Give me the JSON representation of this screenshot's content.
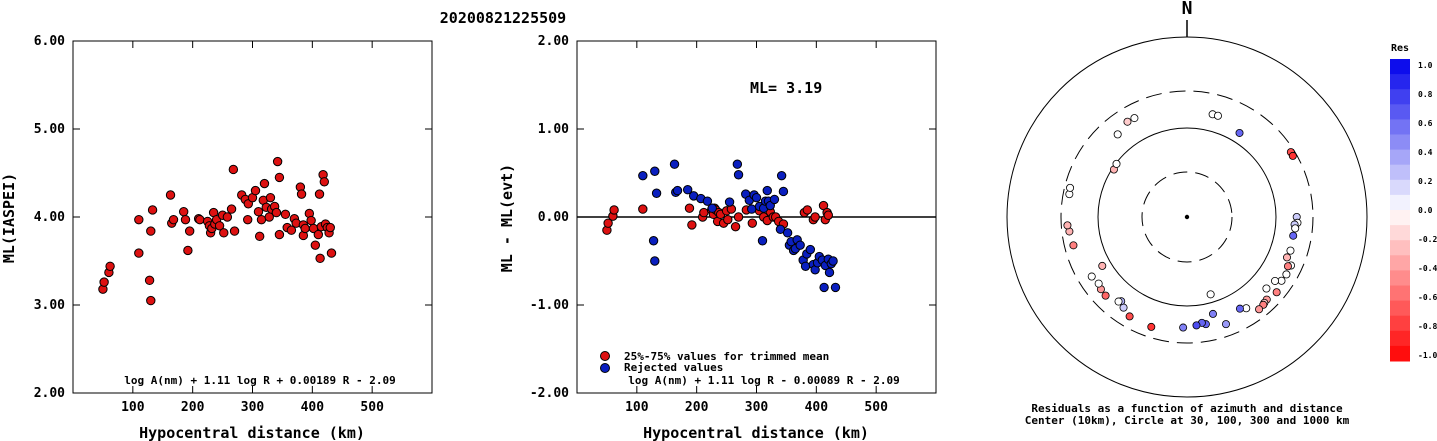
{
  "title": "20200821225509",
  "colors": {
    "accepted": "#dd1111",
    "rejected": "#0a1fbf",
    "outline": "#000000"
  },
  "chart_data": [
    {
      "type": "scatter",
      "title": "",
      "xlabel": "Hypocentral distance (km)",
      "ylabel": "ML(IASPEI)",
      "xlim": [
        0,
        600
      ],
      "ylim": [
        2,
        6
      ],
      "xticks": [
        "100",
        "200",
        "300",
        "400",
        "500"
      ],
      "yticks": [
        "2.00",
        "3.00",
        "4.00",
        "5.00",
        "6.00"
      ],
      "formula": "log A(nm) + 1.11 log R + 0.00189 R - 2.09",
      "series": [
        {
          "color": "#dd1111",
          "points": [
            [
              50,
              3.18
            ],
            [
              52,
              3.26
            ],
            [
              60,
              3.37
            ],
            [
              62,
              3.44
            ],
            [
              110,
              3.97
            ],
            [
              110,
              3.59
            ],
            [
              128,
              3.28
            ],
            [
              130,
              3.05
            ],
            [
              130,
              3.84
            ],
            [
              133,
              4.08
            ],
            [
              163,
              4.25
            ],
            [
              165,
              3.93
            ],
            [
              168,
              3.97
            ],
            [
              185,
              4.06
            ],
            [
              188,
              3.97
            ],
            [
              192,
              3.62
            ],
            [
              195,
              3.84
            ],
            [
              210,
              3.98
            ],
            [
              212,
              3.97
            ],
            [
              225,
              3.95
            ],
            [
              228,
              3.9
            ],
            [
              230,
              3.82
            ],
            [
              232,
              3.87
            ],
            [
              235,
              4.05
            ],
            [
              237,
              3.92
            ],
            [
              240,
              3.97
            ],
            [
              245,
              3.9
            ],
            [
              250,
              4.02
            ],
            [
              252,
              3.82
            ],
            [
              258,
              4.0
            ],
            [
              265,
              4.09
            ],
            [
              268,
              4.54
            ],
            [
              270,
              3.84
            ],
            [
              282,
              4.25
            ],
            [
              288,
              4.2
            ],
            [
              292,
              3.97
            ],
            [
              293,
              4.15
            ],
            [
              300,
              4.22
            ],
            [
              305,
              4.3
            ],
            [
              310,
              4.06
            ],
            [
              312,
              3.78
            ],
            [
              315,
              3.97
            ],
            [
              318,
              4.19
            ],
            [
              320,
              4.38
            ],
            [
              323,
              4.11
            ],
            [
              328,
              4.0
            ],
            [
              330,
              4.22
            ],
            [
              332,
              4.09
            ],
            [
              337,
              4.12
            ],
            [
              340,
              4.05
            ],
            [
              342,
              4.63
            ],
            [
              345,
              3.8
            ],
            [
              345,
              4.45
            ],
            [
              355,
              4.03
            ],
            [
              358,
              3.88
            ],
            [
              365,
              3.85
            ],
            [
              370,
              3.98
            ],
            [
              373,
              3.93
            ],
            [
              380,
              4.34
            ],
            [
              382,
              4.26
            ],
            [
              385,
              3.79
            ],
            [
              385,
              3.91
            ],
            [
              388,
              3.87
            ],
            [
              395,
              4.04
            ],
            [
              398,
              3.96
            ],
            [
              402,
              3.87
            ],
            [
              405,
              3.68
            ],
            [
              410,
              3.8
            ],
            [
              412,
              4.26
            ],
            [
              413,
              3.53
            ],
            [
              415,
              3.89
            ],
            [
              418,
              4.48
            ],
            [
              420,
              4.4
            ],
            [
              422,
              3.92
            ],
            [
              425,
              3.88
            ],
            [
              428,
              3.82
            ],
            [
              430,
              3.88
            ],
            [
              432,
              3.59
            ]
          ]
        }
      ]
    },
    {
      "type": "scatter",
      "title": "",
      "xlabel": "Hypocentral distance (km)",
      "ylabel": "ML - ML(evt)",
      "xlim": [
        0,
        600
      ],
      "ylim": [
        -2,
        2
      ],
      "xticks": [
        "100",
        "200",
        "300",
        "400",
        "500"
      ],
      "yticks": [
        "-2.00",
        "-1.00",
        "0.00",
        "1.00",
        "2.00"
      ],
      "annotation": "ML= 3.19",
      "legend": [
        "25%-75% values for trimmed mean",
        "Rejected values"
      ],
      "formula": "log A(nm) + 1.11 log R - 0.00089 R - 2.09",
      "series": [
        {
          "name": "25%-75% values for trimmed mean",
          "color": "#dd1111",
          "points": [
            [
              50,
              -0.15
            ],
            [
              52,
              -0.07
            ],
            [
              60,
              0.01
            ],
            [
              62,
              0.08
            ],
            [
              110,
              0.09
            ],
            [
              188,
              0.1
            ],
            [
              192,
              -0.09
            ],
            [
              210,
              0.0
            ],
            [
              212,
              0.05
            ],
            [
              225,
              0.08
            ],
            [
              228,
              0.03
            ],
            [
              230,
              0.1
            ],
            [
              232,
              0.08
            ],
            [
              235,
              -0.05
            ],
            [
              237,
              0.05
            ],
            [
              240,
              0.03
            ],
            [
              245,
              -0.07
            ],
            [
              250,
              0.07
            ],
            [
              252,
              -0.03
            ],
            [
              258,
              0.09
            ],
            [
              265,
              -0.11
            ],
            [
              270,
              0.0
            ],
            [
              283,
              0.08
            ],
            [
              293,
              -0.07
            ],
            [
              305,
              0.07
            ],
            [
              312,
              0.0
            ],
            [
              318,
              -0.04
            ],
            [
              323,
              0.06
            ],
            [
              328,
              0.0
            ],
            [
              332,
              0.0
            ],
            [
              337,
              -0.05
            ],
            [
              345,
              -0.08
            ],
            [
              380,
              0.05
            ],
            [
              385,
              0.08
            ],
            [
              395,
              -0.03
            ],
            [
              398,
              0.0
            ],
            [
              412,
              0.13
            ],
            [
              415,
              -0.03
            ],
            [
              418,
              0.05
            ],
            [
              420,
              0.02
            ]
          ]
        },
        {
          "name": "Rejected values",
          "color": "#0a1fbf",
          "points": [
            [
              110,
              0.47
            ],
            [
              128,
              -0.27
            ],
            [
              130,
              -0.5
            ],
            [
              130,
              0.52
            ],
            [
              133,
              0.27
            ],
            [
              163,
              0.6
            ],
            [
              165,
              0.28
            ],
            [
              168,
              0.3
            ],
            [
              185,
              0.31
            ],
            [
              195,
              0.24
            ],
            [
              207,
              0.21
            ],
            [
              218,
              0.18
            ],
            [
              226,
              0.1
            ],
            [
              255,
              0.17
            ],
            [
              268,
              0.6
            ],
            [
              270,
              0.48
            ],
            [
              282,
              0.26
            ],
            [
              288,
              0.19
            ],
            [
              292,
              0.09
            ],
            [
              296,
              0.25
            ],
            [
              300,
              0.22
            ],
            [
              305,
              0.12
            ],
            [
              310,
              -0.27
            ],
            [
              312,
              0.1
            ],
            [
              315,
              0.18
            ],
            [
              318,
              0.3
            ],
            [
              320,
              0.18
            ],
            [
              323,
              0.13
            ],
            [
              330,
              0.2
            ],
            [
              340,
              -0.14
            ],
            [
              342,
              0.47
            ],
            [
              345,
              0.29
            ],
            [
              352,
              -0.18
            ],
            [
              355,
              -0.32
            ],
            [
              358,
              -0.28
            ],
            [
              362,
              -0.38
            ],
            [
              365,
              -0.36
            ],
            [
              368,
              -0.26
            ],
            [
              373,
              -0.32
            ],
            [
              378,
              -0.49
            ],
            [
              382,
              -0.56
            ],
            [
              384,
              -0.42
            ],
            [
              390,
              -0.37
            ],
            [
              395,
              -0.54
            ],
            [
              398,
              -0.6
            ],
            [
              402,
              -0.52
            ],
            [
              405,
              -0.45
            ],
            [
              410,
              -0.49
            ],
            [
              413,
              -0.8
            ],
            [
              415,
              -0.55
            ],
            [
              420,
              -0.48
            ],
            [
              422,
              -0.63
            ],
            [
              425,
              -0.53
            ],
            [
              428,
              -0.5
            ],
            [
              432,
              -0.8
            ]
          ]
        }
      ]
    },
    {
      "type": "scatter",
      "subtype": "polar",
      "north_label": "N",
      "caption_line1": "Residuals as a function of azimuth and distance",
      "caption_line2": "Center (10km), Circle at 30, 100, 300 and 1000 km",
      "colorbar_title": "Res",
      "colorbar_ticks": [
        "1.0",
        "0.8",
        "0.6",
        "0.4",
        "0.2",
        "0.0",
        "-0.2",
        "-0.4",
        "-0.6",
        "-0.8",
        "-1.0"
      ],
      "points": [
        {
          "az": 14,
          "dist": 165,
          "res": 0.0
        },
        {
          "az": 17,
          "dist": 165,
          "res": 0.0
        },
        {
          "az": 32,
          "dist": 135,
          "res": 0.6
        },
        {
          "az": 58,
          "dist": 270,
          "res": -0.7
        },
        {
          "az": 60,
          "dist": 268,
          "res": -0.8
        },
        {
          "az": 90,
          "dist": 185,
          "res": 0.2
        },
        {
          "az": 93,
          "dist": 190,
          "res": 0.0
        },
        {
          "az": 94,
          "dist": 175,
          "res": 0.2
        },
        {
          "az": 96,
          "dist": 180,
          "res": 0.0
        },
        {
          "az": 100,
          "dist": 175,
          "res": 0.6
        },
        {
          "az": 108,
          "dist": 180,
          "res": 0.0
        },
        {
          "az": 112,
          "dist": 175,
          "res": -0.3
        },
        {
          "az": 115,
          "dist": 215,
          "res": 0.0
        },
        {
          "az": 116,
          "dist": 200,
          "res": -0.5
        },
        {
          "az": 120,
          "dist": 215,
          "res": 0.0
        },
        {
          "az": 124,
          "dist": 210,
          "res": 0.0
        },
        {
          "az": 126,
          "dist": 180,
          "res": 0.0
        },
        {
          "az": 130,
          "dist": 230,
          "res": -0.5
        },
        {
          "az": 132,
          "dist": 170,
          "res": 0.0
        },
        {
          "az": 136,
          "dist": 215,
          "res": -0.4
        },
        {
          "az": 138,
          "dist": 220,
          "res": -0.2
        },
        {
          "az": 139,
          "dist": 225,
          "res": -0.5
        },
        {
          "az": 142,
          "dist": 230,
          "res": -0.4
        },
        {
          "az": 147,
          "dist": 180,
          "res": 0.0
        },
        {
          "az": 150,
          "dist": 165,
          "res": 0.6
        },
        {
          "az": 160,
          "dist": 210,
          "res": 0.4
        },
        {
          "az": 165,
          "dist": 140,
          "res": 0.5
        },
        {
          "az": 163,
          "dist": 80,
          "res": 0.0
        },
        {
          "az": 170,
          "dist": 180,
          "res": 0.6
        },
        {
          "az": 172,
          "dist": 170,
          "res": 0.6
        },
        {
          "az": 175,
          "dist": 180,
          "res": 0.7
        },
        {
          "az": 182,
          "dist": 190,
          "res": 0.5
        },
        {
          "az": 198,
          "dist": 220,
          "res": -0.8
        },
        {
          "az": 210,
          "dist": 215,
          "res": -0.7
        },
        {
          "az": 215,
          "dist": 190,
          "res": 0.2
        },
        {
          "az": 218,
          "dist": 170,
          "res": 0.3
        },
        {
          "az": 219,
          "dist": 180,
          "res": 0.0
        },
        {
          "az": 226,
          "dist": 205,
          "res": -0.6
        },
        {
          "az": 230,
          "dist": 200,
          "res": -0.4
        },
        {
          "az": 233,
          "dist": 190,
          "res": 0.0
        },
        {
          "az": 238,
          "dist": 200,
          "res": 0.0
        },
        {
          "az": 240,
          "dist": 130,
          "res": -0.3
        },
        {
          "az": 256,
          "dist": 230,
          "res": -0.5
        },
        {
          "az": 263,
          "dist": 240,
          "res": -0.3
        },
        {
          "az": 266,
          "dist": 250,
          "res": -0.3
        },
        {
          "az": 281,
          "dist": 250,
          "res": 0.0
        },
        {
          "az": 284,
          "dist": 255,
          "res": 0.0
        },
        {
          "az": 303,
          "dist": 95,
          "res": -0.3
        },
        {
          "az": 307,
          "dist": 98,
          "res": 0.0
        },
        {
          "az": 320,
          "dist": 175,
          "res": 0.0
        },
        {
          "az": 328,
          "dist": 200,
          "res": -0.2
        },
        {
          "az": 332,
          "dist": 198,
          "res": 0.0
        }
      ]
    }
  ]
}
